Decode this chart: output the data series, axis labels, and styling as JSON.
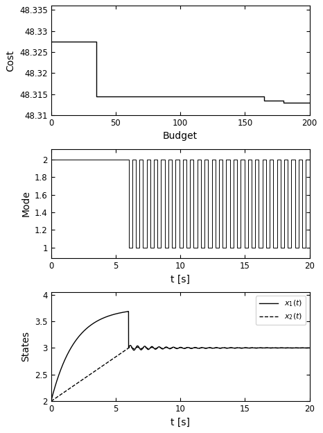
{
  "plot1": {
    "xlabel": "Budget",
    "ylabel": "Cost",
    "xlim": [
      0,
      200
    ],
    "ylim": [
      48.31,
      48.336
    ],
    "xticks": [
      0,
      50,
      100,
      150,
      200
    ],
    "yticks": [
      48.31,
      48.315,
      48.32,
      48.325,
      48.33,
      48.335
    ],
    "cost_x": [
      0,
      15,
      15,
      35,
      35,
      165,
      165,
      180,
      180,
      200
    ],
    "cost_y": [
      48.3275,
      48.3275,
      48.3275,
      48.3275,
      48.3145,
      48.3145,
      48.3135,
      48.3135,
      48.313,
      48.313
    ]
  },
  "plot2": {
    "xlabel": "t [s]",
    "ylabel": "Mode",
    "xlim": [
      0,
      20
    ],
    "ylim": [
      0.88,
      2.12
    ],
    "xticks": [
      0,
      5,
      10,
      15,
      20
    ],
    "ytick_vals": [
      1.0,
      1.2,
      1.4,
      1.6,
      1.8,
      2.0
    ],
    "ytick_labels": [
      "1",
      "1.2",
      "1.4",
      "1.6",
      "1.8",
      "2"
    ],
    "switch_time": 6.0,
    "oscillation_half_period": 0.28,
    "t_end": 20
  },
  "plot3": {
    "xlabel": "t [s]",
    "ylabel": "States",
    "xlim": [
      0,
      20
    ],
    "ylim": [
      2.0,
      4.05
    ],
    "xticks": [
      0,
      5,
      10,
      15,
      20
    ],
    "yticks": [
      2.0,
      2.5,
      3.0,
      3.5,
      4.0
    ],
    "legend_x1": "$x_1(t)$",
    "legend_x2": "$x_2(t)$"
  },
  "line_color": "#000000",
  "bg_color": "#ffffff",
  "tick_label_size": 8.5,
  "axis_label_size": 10
}
